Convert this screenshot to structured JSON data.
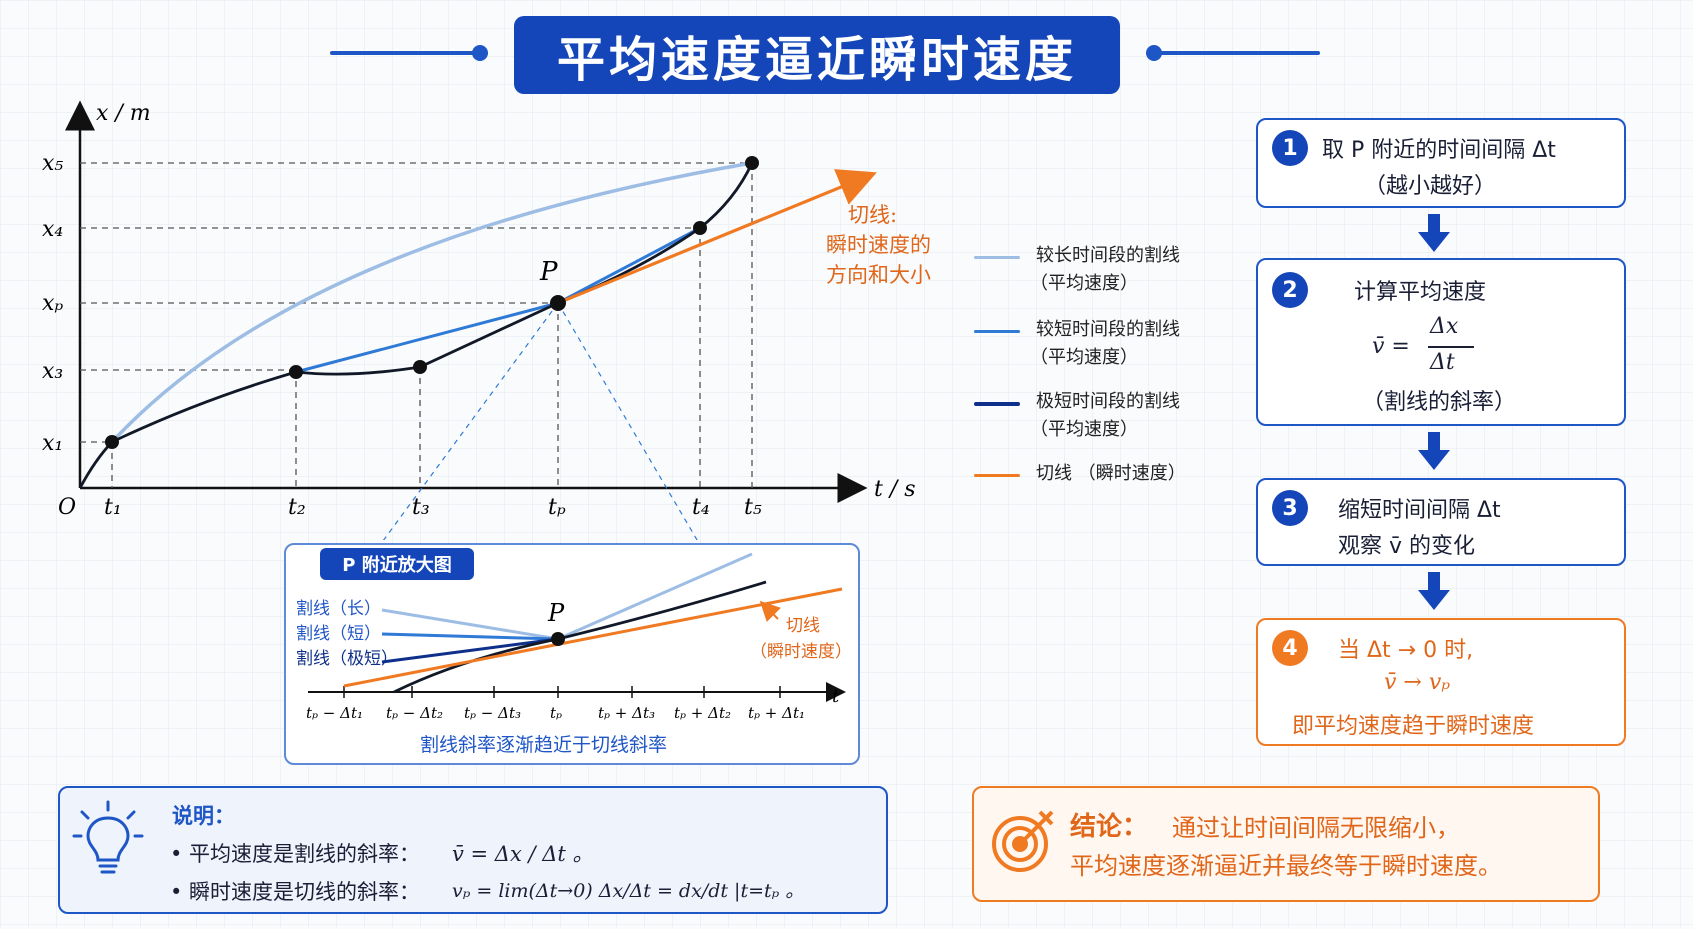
{
  "title": "平均速度逼近瞬时速度",
  "colors": {
    "primary_blue": "#1446b9",
    "light_blue": "#9dbde4",
    "mid_blue": "#2e7ad6",
    "dark_blue": "#0e2f8a",
    "orange": "#f07a22",
    "curve_black": "#111827"
  },
  "main_chart": {
    "y_axis_label": "x / m",
    "x_axis_label": "t / s",
    "origin_label": "O",
    "y_ticks": [
      "x₅",
      "x₄",
      "xₚ",
      "x₃",
      "x₁"
    ],
    "x_ticks": [
      "t₁",
      "t₂",
      "t₃",
      "tₚ",
      "t₄",
      "t₅"
    ],
    "point_label": "P",
    "tangent_note": [
      "切线:",
      "瞬时速度的",
      "方向和大小"
    ]
  },
  "legend": [
    {
      "line1": "较长时间段的割线",
      "line2": "（平均速度）",
      "color": "#9dbde4"
    },
    {
      "line1": "较短时间段的割线",
      "line2": "（平均速度）",
      "color": "#2e7ad6"
    },
    {
      "line1": "极短时间段的割线",
      "line2": "（平均速度）",
      "color": "#0e2f8a"
    },
    {
      "line1": "切线 （瞬时速度）",
      "line2": "",
      "color": "#f07a22"
    }
  ],
  "steps": [
    {
      "num": "1",
      "line1": "取 P 附近的时间间隔 Δt",
      "line2": "（越小越好）"
    },
    {
      "num": "2",
      "line1": "计算平均速度",
      "formula_lhs": "v̄ =",
      "formula_num": "Δx",
      "formula_den": "Δt",
      "line3": "（割线的斜率）"
    },
    {
      "num": "3",
      "line1": "缩短时间间隔 Δt",
      "line2": "观察 v̄ 的变化"
    },
    {
      "num": "4",
      "line1": "当 Δt → 0 时,",
      "line2": "v̄ → vₚ",
      "line3": "即平均速度趋于瞬时速度"
    }
  ],
  "zoom": {
    "tag": "P 附近放大图",
    "labels": [
      "割线（长）",
      "割线（短）",
      "割线（极短）"
    ],
    "point_label": "P",
    "tangent_label": [
      "切线",
      "（瞬时速度）"
    ],
    "axis_label": "t",
    "x_ticks": [
      "tₚ − Δt₁",
      "tₚ − Δt₂",
      "tₚ − Δt₃",
      "tₚ",
      "tₚ + Δt₃",
      "tₚ + Δt₂",
      "tₚ + Δt₁"
    ],
    "caption": "割线斜率逐渐趋近于切线斜率"
  },
  "note": {
    "heading": "说明：",
    "line1": "• 平均速度是割线的斜率：",
    "line1_formula": "v̄ = Δx / Δt 。",
    "line2": "• 瞬时速度是切线的斜率：",
    "line2_formula": "vₚ = lim(Δt→0) Δx/Δt = dx/dt |t=tₚ 。"
  },
  "conclusion": {
    "bold": "结论：",
    "line1": "通过让时间间隔无限缩小，",
    "line2": "平均速度逐渐逼近并最终等于瞬时速度。"
  }
}
